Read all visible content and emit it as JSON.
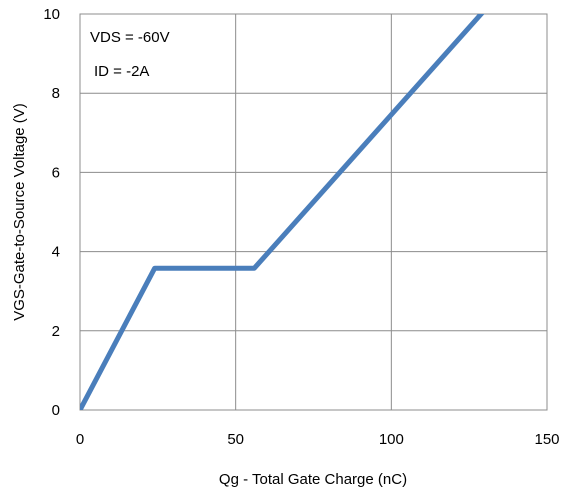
{
  "chart_data": {
    "type": "line",
    "title": "",
    "xlabel": "Qg - Total Gate Charge (nC)",
    "ylabel": "VGS-Gate-to-Source Voltage (V)",
    "xlim": [
      0,
      150
    ],
    "ylim": [
      0,
      10
    ],
    "xticks": [
      "0",
      "50",
      "100",
      "150"
    ],
    "yticks": [
      "0",
      "2",
      "4",
      "6",
      "8",
      "10"
    ],
    "grid": true,
    "annotations": [
      "VDS = -60V",
      "ID = -2A"
    ],
    "series": [
      {
        "color": "#4A7EBB",
        "x": [
          0,
          24,
          56,
          130
        ],
        "y": [
          0,
          3.58,
          3.58,
          10.1
        ]
      }
    ]
  }
}
